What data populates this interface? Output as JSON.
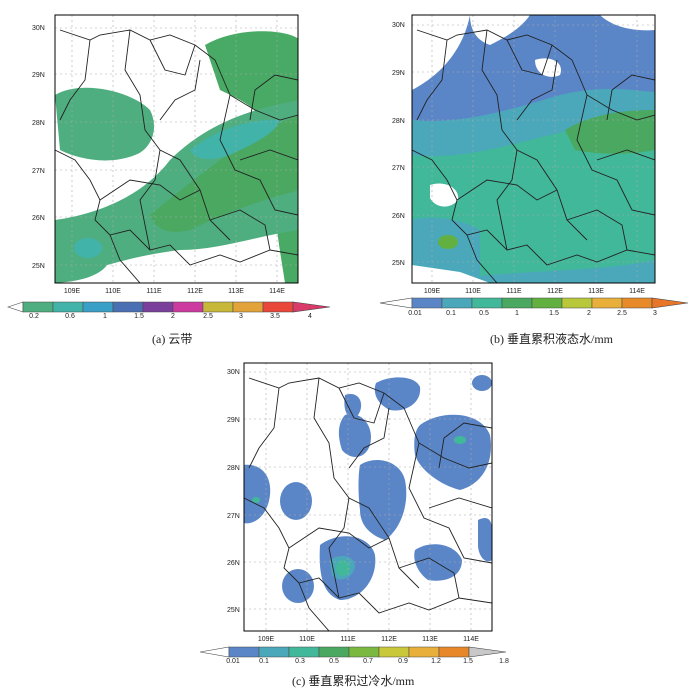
{
  "panels": [
    {
      "id": "a",
      "caption": "(a) 云带",
      "lat_labels": [
        "30N",
        "29N",
        "28N",
        "27N",
        "26N",
        "25N"
      ],
      "lon_labels": [
        "109E",
        "110E",
        "111E",
        "112E",
        "113E",
        "114E"
      ],
      "colorbar_labels": [
        "0.2",
        "0.6",
        "1",
        "1.5",
        "2",
        "2.5",
        "3",
        "3.5",
        "4"
      ],
      "colorbar_colors": [
        "#4fae7f",
        "#41b3a8",
        "#3a9fc6",
        "#4b6fb3",
        "#7a3f9a",
        "#cc3aa0",
        "#c8b83a",
        "#e2a43a",
        "#e8473a",
        "#d83a6a"
      ]
    },
    {
      "id": "b",
      "caption": "(b) 垂直累积液态水/mm",
      "lat_labels": [
        "30N",
        "29N",
        "28N",
        "27N",
        "26N",
        "25N"
      ],
      "lon_labels": [
        "109E",
        "110E",
        "111E",
        "112E",
        "113E",
        "114E"
      ],
      "colorbar_labels": [
        "0.01",
        "0.1",
        "0.5",
        "1",
        "1.5",
        "2",
        "2.5",
        "3"
      ],
      "colorbar_colors": [
        "#5a86c8",
        "#4aa8ba",
        "#42b89a",
        "#4aa860",
        "#62b040",
        "#b8c83a",
        "#e8b03a",
        "#e88a2a"
      ]
    },
    {
      "id": "c",
      "caption": "(c) 垂直累积过冷水/mm",
      "lat_labels": [
        "30N",
        "29N",
        "28N",
        "27N",
        "26N",
        "25N"
      ],
      "lon_labels": [
        "109E",
        "110E",
        "111E",
        "112E",
        "113E",
        "114E"
      ],
      "colorbar_labels": [
        "0.01",
        "0.1",
        "0.3",
        "0.5",
        "0.7",
        "0.9",
        "1.2",
        "1.5",
        "1.8"
      ],
      "colorbar_colors": [
        "#5a86c8",
        "#4aa8ba",
        "#42b89a",
        "#4aa860",
        "#7ab840",
        "#c8c83a",
        "#e8b03a",
        "#e8862a",
        "#c8c8c8"
      ]
    }
  ]
}
